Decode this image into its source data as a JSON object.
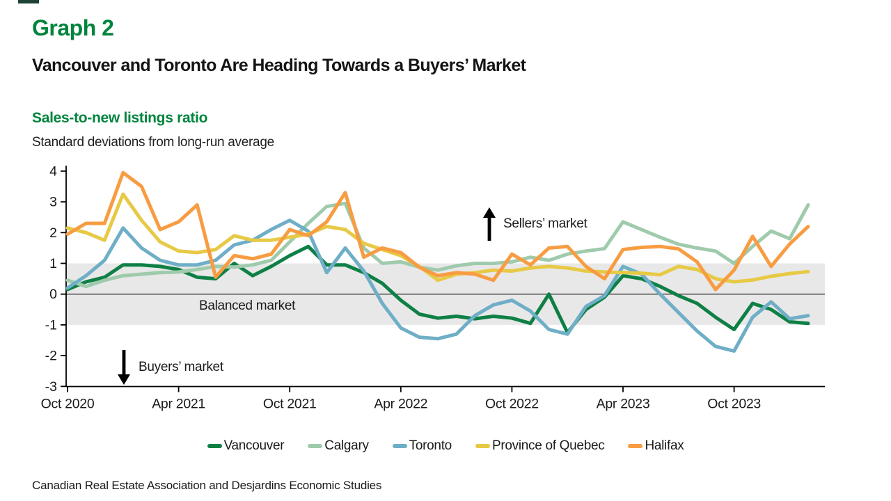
{
  "header": {
    "graph_label": "Graph 2",
    "title": "Vancouver and Toronto Are Heading Towards a Buyers’ Market"
  },
  "chart_header": {
    "title": "Sales-to-new listings ratio",
    "subtitle": "Standard deviations from long-run average"
  },
  "annotations": {
    "balanced": "Balanced market",
    "sellers": "Sellers’ market",
    "buyers": "Buyers’ market"
  },
  "source": "Canadian Real Estate Association and Desjardins Economic Studies",
  "colors": {
    "title_green": "#00843D",
    "band_gray": "#e8e8e8",
    "axis_black": "#000000",
    "zero_line": "#3a3a3a",
    "text_dark": "#1a1a1a"
  },
  "chart_data": {
    "type": "line",
    "title": "Sales-to-new listings ratio",
    "ylabel": "Standard deviations from long-run average",
    "ylim": [
      -3,
      4
    ],
    "yticks": [
      4,
      3,
      2,
      1,
      0,
      -1,
      -2,
      -3
    ],
    "grid": false,
    "legend_position": "bottom",
    "balanced_band": [
      -1,
      1
    ],
    "x": [
      "Oct 2020",
      "Nov 2020",
      "Dec 2020",
      "Jan 2021",
      "Feb 2021",
      "Mar 2021",
      "Apr 2021",
      "May 2021",
      "Jun 2021",
      "Jul 2021",
      "Aug 2021",
      "Sep 2021",
      "Oct 2021",
      "Nov 2021",
      "Dec 2021",
      "Jan 2022",
      "Feb 2022",
      "Mar 2022",
      "Apr 2022",
      "May 2022",
      "Jun 2022",
      "Jul 2022",
      "Aug 2022",
      "Sep 2022",
      "Oct 2022",
      "Nov 2022",
      "Dec 2022",
      "Jan 2023",
      "Feb 2023",
      "Mar 2023",
      "Apr 2023",
      "May 2023",
      "Jun 2023",
      "Jul 2023",
      "Aug 2023",
      "Sep 2023",
      "Oct 2023",
      "Nov 2023",
      "Dec 2023",
      "Jan 2024",
      "Feb 2024"
    ],
    "xtick_labels": [
      "Oct 2020",
      "Apr 2021",
      "Oct 2021",
      "Apr 2022",
      "Oct 2022",
      "Apr 2023",
      "Oct 2023"
    ],
    "xtick_indices": [
      0,
      6,
      12,
      18,
      24,
      30,
      36
    ],
    "series": [
      {
        "name": "Vancouver",
        "color": "#0E8045",
        "values": [
          0.15,
          0.4,
          0.55,
          0.95,
          0.95,
          0.9,
          0.8,
          0.55,
          0.5,
          1.0,
          0.6,
          0.9,
          1.25,
          1.55,
          0.95,
          0.95,
          0.7,
          0.35,
          -0.2,
          -0.65,
          -0.78,
          -0.72,
          -0.8,
          -0.72,
          -0.78,
          -0.95,
          0.0,
          -1.25,
          -0.5,
          -0.1,
          0.6,
          0.5,
          0.25,
          -0.05,
          -0.3,
          -0.75,
          -1.15,
          -0.3,
          -0.5,
          -0.9,
          -0.95
        ]
      },
      {
        "name": "Calgary",
        "color": "#9FCBAC",
        "values": [
          0.45,
          0.25,
          0.45,
          0.6,
          0.65,
          0.7,
          0.72,
          0.8,
          0.9,
          0.88,
          0.95,
          1.1,
          1.7,
          2.3,
          2.85,
          2.95,
          1.5,
          1.0,
          1.05,
          0.88,
          0.78,
          0.92,
          1.0,
          1.0,
          1.05,
          1.2,
          1.1,
          1.3,
          1.4,
          1.48,
          2.35,
          2.1,
          1.85,
          1.62,
          1.5,
          1.4,
          1.0,
          1.55,
          2.05,
          1.8,
          2.9
        ]
      },
      {
        "name": "Toronto",
        "color": "#6FAEC7",
        "values": [
          0.2,
          0.6,
          1.1,
          2.15,
          1.5,
          1.1,
          0.95,
          0.95,
          1.1,
          1.6,
          1.75,
          2.1,
          2.4,
          2.05,
          0.7,
          1.5,
          0.75,
          -0.3,
          -1.1,
          -1.4,
          -1.45,
          -1.3,
          -0.7,
          -0.35,
          -0.2,
          -0.55,
          -1.15,
          -1.3,
          -0.4,
          -0.05,
          0.9,
          0.65,
          0.0,
          -0.6,
          -1.2,
          -1.7,
          -1.85,
          -0.75,
          -0.25,
          -0.8,
          -0.7
        ]
      },
      {
        "name": "Province of Quebec",
        "color": "#E7C945",
        "values": [
          2.15,
          2.0,
          1.75,
          3.25,
          2.4,
          1.7,
          1.4,
          1.35,
          1.45,
          1.9,
          1.75,
          1.75,
          1.85,
          1.95,
          2.2,
          2.1,
          1.65,
          1.45,
          1.25,
          0.9,
          0.45,
          0.65,
          0.7,
          0.78,
          0.75,
          0.85,
          0.9,
          0.85,
          0.75,
          0.72,
          0.7,
          0.68,
          0.63,
          0.9,
          0.8,
          0.5,
          0.4,
          0.46,
          0.58,
          0.67,
          0.73
        ]
      },
      {
        "name": "Halifax",
        "color": "#F89C42",
        "values": [
          1.95,
          2.3,
          2.3,
          3.95,
          3.5,
          2.1,
          2.35,
          2.9,
          0.55,
          1.25,
          1.15,
          1.3,
          2.1,
          1.9,
          2.35,
          3.3,
          1.2,
          1.5,
          1.35,
          0.87,
          0.6,
          0.7,
          0.65,
          0.45,
          1.3,
          0.95,
          1.5,
          1.55,
          0.9,
          0.5,
          1.45,
          1.52,
          1.55,
          1.47,
          1.05,
          0.15,
          0.78,
          1.88,
          0.9,
          1.63,
          2.2
        ]
      }
    ]
  }
}
